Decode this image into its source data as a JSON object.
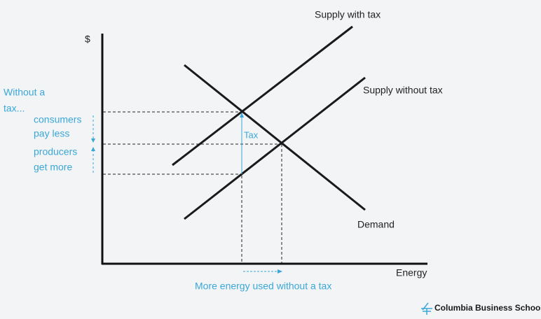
{
  "axes": {
    "y_label": "$",
    "x_label": "Energy"
  },
  "curves": {
    "supply_with_tax": "Supply with tax",
    "supply_without_tax": "Supply without tax",
    "demand": "Demand"
  },
  "annotations": {
    "without_tax": [
      "Without a",
      "tax..."
    ],
    "consumers": [
      "consumers",
      "pay less"
    ],
    "producers": [
      "producers",
      "get more"
    ],
    "tax": "Tax",
    "more_energy": "More energy used without a tax"
  },
  "footer": {
    "logo": "Columbia Business School"
  }
}
